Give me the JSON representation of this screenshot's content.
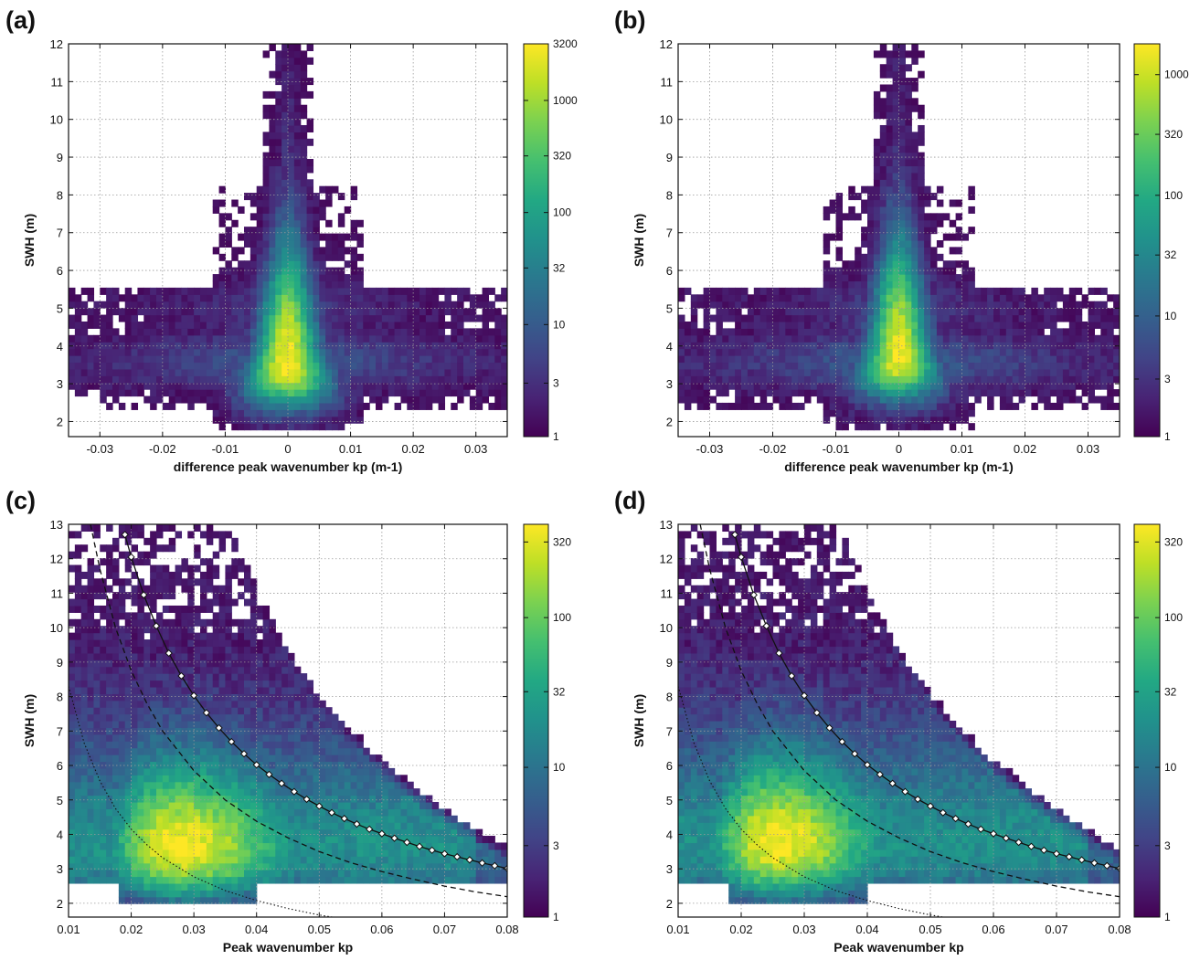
{
  "chart_data": [
    {
      "panel": "(a)",
      "type": "heatmap",
      "xlabel": "difference peak wavenumber kp (m-1)",
      "ylabel": "SWH (m)",
      "xlim": [
        -0.035,
        0.035
      ],
      "ylim": [
        1.6,
        12
      ],
      "xticks": [
        -0.03,
        -0.02,
        -0.01,
        0,
        0.01,
        0.02,
        0.03
      ],
      "xtick_labels": [
        "-0.03",
        "-0.02",
        "-0.01",
        "0",
        "0.01",
        "0.02",
        "0.03"
      ],
      "yticks": [
        2,
        3,
        4,
        5,
        6,
        7,
        8,
        9,
        10,
        11,
        12
      ],
      "ytick_labels": [
        "2",
        "3",
        "4",
        "5",
        "6",
        "7",
        "8",
        "9",
        "10",
        "11",
        "12"
      ],
      "grid": true,
      "colormap": "viridis",
      "colorbar_scale": "log",
      "colorbar_range": [
        1,
        3200
      ],
      "colorbar_ticks": [
        1,
        3,
        10,
        32,
        100,
        320,
        1000,
        3200
      ],
      "colorbar_tick_labels": [
        "1",
        "3",
        "10",
        "32",
        "100",
        "320",
        "1000",
        "3200"
      ],
      "density_model": {
        "kind": "diff",
        "peak_x": 0.0,
        "peak_y": 3.4,
        "peak_count": 3200
      }
    },
    {
      "panel": "(b)",
      "type": "heatmap",
      "xlabel": "difference peak wavenumber kp (m-1)",
      "ylabel": "SWH (m)",
      "xlim": [
        -0.035,
        0.035
      ],
      "ylim": [
        1.6,
        12
      ],
      "xticks": [
        -0.03,
        -0.02,
        -0.01,
        0,
        0.01,
        0.02,
        0.03
      ],
      "xtick_labels": [
        "-0.03",
        "-0.02",
        "-0.01",
        "0",
        "0.01",
        "0.02",
        "0.03"
      ],
      "yticks": [
        2,
        3,
        4,
        5,
        6,
        7,
        8,
        9,
        10,
        11,
        12
      ],
      "ytick_labels": [
        "2",
        "3",
        "4",
        "5",
        "6",
        "7",
        "8",
        "9",
        "10",
        "11",
        "12"
      ],
      "grid": true,
      "colormap": "viridis",
      "colorbar_scale": "log",
      "colorbar_range": [
        1,
        1800
      ],
      "colorbar_ticks": [
        1,
        3,
        10,
        32,
        100,
        320,
        1000
      ],
      "colorbar_tick_labels": [
        "1",
        "3",
        "10",
        "32",
        "100",
        "320",
        "1000"
      ],
      "density_model": {
        "kind": "diff",
        "peak_x": 0.0,
        "peak_y": 3.6,
        "peak_count": 1500
      }
    },
    {
      "panel": "(c)",
      "type": "heatmap",
      "xlabel": "Peak wavenumber kp",
      "ylabel": "SWH (m)",
      "xlim": [
        0.01,
        0.08
      ],
      "ylim": [
        1.6,
        13
      ],
      "xticks": [
        0.01,
        0.02,
        0.03,
        0.04,
        0.05,
        0.06,
        0.07,
        0.08
      ],
      "xtick_labels": [
        "0.01",
        "0.02",
        "0.03",
        "0.04",
        "0.05",
        "0.06",
        "0.07",
        "0.08"
      ],
      "yticks": [
        2,
        3,
        4,
        5,
        6,
        7,
        8,
        9,
        10,
        11,
        12,
        13
      ],
      "ytick_labels": [
        "2",
        "3",
        "4",
        "5",
        "6",
        "7",
        "8",
        "9",
        "10",
        "11",
        "12",
        "13"
      ],
      "grid": true,
      "colormap": "viridis",
      "colorbar_scale": "log",
      "colorbar_range": [
        1,
        420
      ],
      "colorbar_ticks": [
        1,
        3,
        10,
        32,
        100,
        320
      ],
      "colorbar_tick_labels": [
        "1",
        "3",
        "10",
        "32",
        "100",
        "320"
      ],
      "density_model": {
        "kind": "kp",
        "peak_x": 0.028,
        "peak_y": 3.7,
        "peak_count": 420
      },
      "curves": [
        {
          "style": "solid-diamond",
          "x": [
            0.019,
            0.02,
            0.022,
            0.024,
            0.026,
            0.028,
            0.03,
            0.032,
            0.034,
            0.036,
            0.038,
            0.04,
            0.042,
            0.044,
            0.046,
            0.048,
            0.05,
            0.052,
            0.054,
            0.056,
            0.058,
            0.06,
            0.062,
            0.064,
            0.066,
            0.068,
            0.07,
            0.072,
            0.074,
            0.076,
            0.078,
            0.08
          ],
          "y": [
            12.7,
            12.05,
            10.95,
            10.05,
            9.26,
            8.6,
            8.03,
            7.53,
            7.09,
            6.69,
            6.34,
            6.02,
            5.74,
            5.48,
            5.24,
            5.02,
            4.82,
            4.63,
            4.46,
            4.3,
            4.15,
            4.02,
            3.89,
            3.77,
            3.65,
            3.54,
            3.44,
            3.35,
            3.26,
            3.17,
            3.09,
            3.01
          ]
        },
        {
          "style": "dashed",
          "x": [
            0.0135,
            0.015,
            0.0175,
            0.02,
            0.0225,
            0.025,
            0.03,
            0.035,
            0.04,
            0.045,
            0.05,
            0.055,
            0.06,
            0.065,
            0.07,
            0.075,
            0.08
          ],
          "y": [
            13.0,
            11.7,
            10.0,
            8.75,
            7.8,
            7.0,
            5.85,
            5.0,
            4.38,
            3.9,
            3.5,
            3.18,
            2.92,
            2.7,
            2.5,
            2.33,
            2.19
          ]
        },
        {
          "style": "dotted",
          "x": [
            0.01,
            0.0125,
            0.015,
            0.0175,
            0.02,
            0.0225,
            0.025,
            0.03,
            0.035,
            0.04,
            0.045,
            0.05,
            0.055
          ],
          "y": [
            8.3,
            6.65,
            5.55,
            4.75,
            4.15,
            3.7,
            3.32,
            2.77,
            2.37,
            2.08,
            1.85,
            1.66,
            1.51
          ]
        }
      ]
    },
    {
      "panel": "(d)",
      "type": "heatmap",
      "xlabel": "Peak wavenumber kp",
      "ylabel": "SWH (m)",
      "xlim": [
        0.01,
        0.08
      ],
      "ylim": [
        1.6,
        13
      ],
      "xticks": [
        0.01,
        0.02,
        0.03,
        0.04,
        0.05,
        0.06,
        0.07,
        0.08
      ],
      "xtick_labels": [
        "0.01",
        "0.02",
        "0.03",
        "0.04",
        "0.05",
        "0.06",
        "0.07",
        "0.08"
      ],
      "yticks": [
        2,
        3,
        4,
        5,
        6,
        7,
        8,
        9,
        10,
        11,
        12,
        13
      ],
      "ytick_labels": [
        "2",
        "3",
        "4",
        "5",
        "6",
        "7",
        "8",
        "9",
        "10",
        "11",
        "12",
        "13"
      ],
      "grid": true,
      "colormap": "viridis",
      "colorbar_scale": "log",
      "colorbar_range": [
        1,
        420
      ],
      "colorbar_ticks": [
        1,
        3,
        10,
        32,
        100,
        320
      ],
      "colorbar_tick_labels": [
        "1",
        "3",
        "10",
        "32",
        "100",
        "320"
      ],
      "density_model": {
        "kind": "kp",
        "peak_x": 0.026,
        "peak_y": 3.8,
        "peak_count": 420
      },
      "curves": [
        {
          "style": "solid-diamond",
          "x": [
            0.019,
            0.02,
            0.022,
            0.024,
            0.026,
            0.028,
            0.03,
            0.032,
            0.034,
            0.036,
            0.038,
            0.04,
            0.042,
            0.044,
            0.046,
            0.048,
            0.05,
            0.052,
            0.054,
            0.056,
            0.058,
            0.06,
            0.062,
            0.064,
            0.066,
            0.068,
            0.07,
            0.072,
            0.074,
            0.076,
            0.078,
            0.08
          ],
          "y": [
            12.7,
            12.05,
            10.95,
            10.05,
            9.26,
            8.6,
            8.03,
            7.53,
            7.09,
            6.69,
            6.34,
            6.02,
            5.74,
            5.48,
            5.24,
            5.02,
            4.82,
            4.63,
            4.46,
            4.3,
            4.15,
            4.02,
            3.89,
            3.77,
            3.65,
            3.54,
            3.44,
            3.35,
            3.26,
            3.17,
            3.09,
            3.01
          ]
        },
        {
          "style": "dashed",
          "x": [
            0.0135,
            0.015,
            0.0175,
            0.02,
            0.0225,
            0.025,
            0.03,
            0.035,
            0.04,
            0.045,
            0.05,
            0.055,
            0.06,
            0.065,
            0.07,
            0.075,
            0.08
          ],
          "y": [
            13.0,
            11.7,
            10.0,
            8.75,
            7.8,
            7.0,
            5.85,
            5.0,
            4.38,
            3.9,
            3.5,
            3.18,
            2.92,
            2.7,
            2.5,
            2.33,
            2.19
          ]
        },
        {
          "style": "dotted",
          "x": [
            0.01,
            0.0125,
            0.015,
            0.0175,
            0.02,
            0.0225,
            0.025,
            0.03,
            0.035,
            0.04,
            0.045,
            0.05,
            0.055
          ],
          "y": [
            8.3,
            6.65,
            5.55,
            4.75,
            4.15,
            3.7,
            3.32,
            2.77,
            2.37,
            2.08,
            1.85,
            1.66,
            1.51
          ]
        }
      ]
    }
  ]
}
